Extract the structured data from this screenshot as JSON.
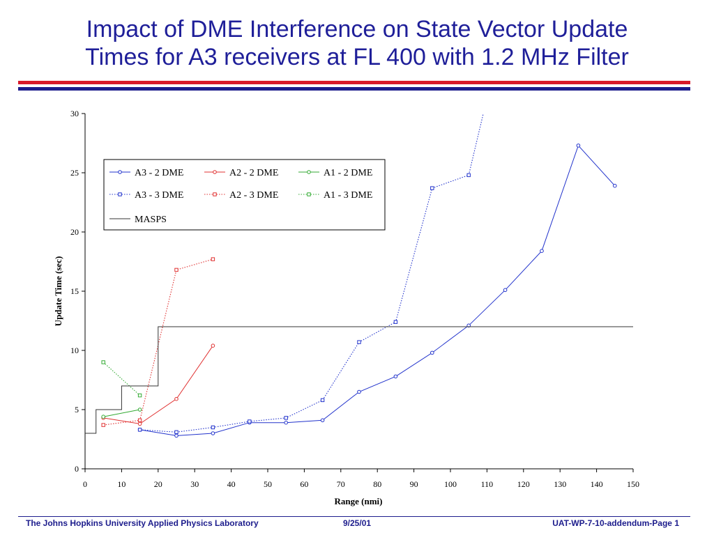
{
  "slide": {
    "title_line1": "Impact of DME Interference on State Vector Update",
    "title_line2": "Times for A3 receivers at FL 400 with 1.2 MHz Filter"
  },
  "footer": {
    "left": "The Johns Hopkins University Applied Physics Laboratory",
    "center": "9/25/01",
    "right": "UAT-WP-7-10-addendum-Page 1"
  },
  "colors": {
    "title": "#1f1f99",
    "band_red": "#d8192a",
    "band_blue": "#1c1c8c",
    "a3": "#2233cc",
    "a2": "#e03030",
    "a1": "#33aa33",
    "masps": "#333333"
  },
  "chart_data": {
    "type": "line",
    "xlabel": "Range (nmi)",
    "ylabel": "Update Time (sec)",
    "xlim": [
      0,
      150
    ],
    "ylim": [
      0,
      30
    ],
    "xticks": [
      0,
      10,
      20,
      30,
      40,
      50,
      60,
      70,
      80,
      90,
      100,
      110,
      120,
      130,
      140,
      150
    ],
    "yticks": [
      0,
      5,
      10,
      15,
      20,
      25,
      30
    ],
    "grid": false,
    "legend_position": "top-left",
    "series": [
      {
        "name": "A3 - 2 DME",
        "color": "#2233cc",
        "style": "solid",
        "marker": "circle",
        "x": [
          15,
          25,
          35,
          45,
          55,
          65,
          75,
          85,
          95,
          105,
          115,
          125,
          135,
          145
        ],
        "y": [
          3.3,
          2.8,
          3.0,
          3.9,
          3.9,
          4.1,
          6.5,
          7.8,
          9.8,
          12.1,
          15.1,
          18.4,
          27.3,
          23.9
        ]
      },
      {
        "name": "A2 - 2 DME",
        "color": "#e03030",
        "style": "solid",
        "marker": "circle",
        "x": [
          5,
          15,
          25,
          35
        ],
        "y": [
          4.3,
          3.8,
          5.9,
          10.4
        ]
      },
      {
        "name": "A1 - 2 DME",
        "color": "#33aa33",
        "style": "solid",
        "marker": "circle",
        "x": [
          5,
          15
        ],
        "y": [
          4.4,
          5.0
        ]
      },
      {
        "name": "A3 - 3 DME",
        "color": "#2233cc",
        "style": "dotted",
        "marker": "square",
        "x": [
          15,
          25,
          35,
          45,
          55,
          65,
          75,
          85,
          95,
          105,
          109
        ],
        "y": [
          3.3,
          3.1,
          3.5,
          4.0,
          4.3,
          5.8,
          10.7,
          12.4,
          23.7,
          24.8,
          30.0
        ]
      },
      {
        "name": "A2 - 3 DME",
        "color": "#e03030",
        "style": "dotted",
        "marker": "square",
        "x": [
          5,
          15,
          25,
          35
        ],
        "y": [
          3.7,
          4.1,
          16.8,
          17.7
        ]
      },
      {
        "name": "A1 - 3 DME",
        "color": "#33aa33",
        "style": "dotted",
        "marker": "square",
        "x": [
          5,
          15
        ],
        "y": [
          9.0,
          6.2
        ]
      },
      {
        "name": "MASPS",
        "color": "#333333",
        "style": "solid",
        "marker": "none",
        "x": [
          0,
          3,
          3,
          10,
          10,
          20,
          20,
          150
        ],
        "y": [
          3,
          3,
          5,
          5,
          7,
          7,
          12,
          12
        ]
      }
    ]
  }
}
